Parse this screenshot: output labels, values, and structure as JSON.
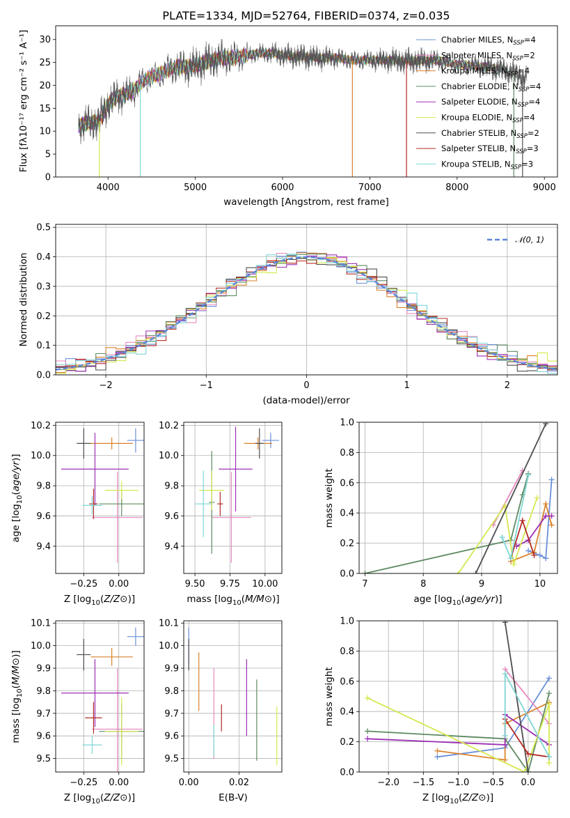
{
  "figure_title": "PLATE=1334, MJD=52764, FIBERID=0374, z=0.035",
  "colors": [
    "#6a8fd9",
    "#e58ac0",
    "#d9822b",
    "#5d8a62",
    "#9b2fb4",
    "#d6e84f",
    "#4d4d4d",
    "#b22a22",
    "#7fd6d6"
  ],
  "sub_labels": {
    "over": "over",
    "sub": "sub"
  },
  "chart_data": [
    {
      "type": "line",
      "title": "PLATE=1334, MJD=52764, FIBERID=0374, z=0.035",
      "xlabel": "wavelength [Angstrom, rest frame]",
      "ylabel": "Flux [fλ10⁻¹⁷ erg cm⁻² s⁻¹ A⁻¹]",
      "xlim": [
        3400,
        9150
      ],
      "ylim": [
        0,
        33
      ],
      "xticks": [
        4000,
        5000,
        6000,
        7000,
        8000,
        9000
      ],
      "yticks": [
        0,
        5,
        10,
        15,
        20,
        25,
        30
      ],
      "grid": false,
      "legend": "top-right",
      "series_names": [
        "Chabrier MILES, N_SSP=4",
        "Salpeter MILES, N_SSP=2",
        "Kroupa MILES, N_SSP=4",
        "Chabrier ELODIE, N_SSP=4",
        "Salpeter ELODIE, N_SSP=4",
        "Kroupa ELODIE, N_SSP=4",
        "Chabrier STELIB, N_SSP=2",
        "Salpeter STELIB, N_SSP=3",
        "Kroupa STELIB, N_SSP=3"
      ],
      "legend_parts": [
        [
          "Chabrier MILES, N",
          "SSP",
          "=4"
        ],
        [
          "Salpeter MILES, N",
          "SSP",
          "=2"
        ],
        [
          "Kroupa MILES, N",
          "SSP",
          "=4"
        ],
        [
          "Chabrier ELODIE, N",
          "SSP",
          "=4"
        ],
        [
          "Salpeter ELODIE, N",
          "SSP",
          "=4"
        ],
        [
          "Kroupa ELODIE, N",
          "SSP",
          "=4"
        ],
        [
          "Chabrier STELIB, N",
          "SSP",
          "=2"
        ],
        [
          "Salpeter STELIB, N",
          "SSP",
          "=3"
        ],
        [
          "Kroupa STELIB, N",
          "SSP",
          "=3"
        ]
      ],
      "continuum": {
        "x": [
          3650,
          3700,
          3800,
          3900,
          4000,
          4100,
          4200,
          4300,
          4400,
          4500,
          4600,
          4700,
          4800,
          4900,
          5000,
          5100,
          5200,
          5300,
          5400,
          5500,
          5600,
          5700,
          5800,
          5900,
          6000,
          6200,
          6400,
          6600,
          6800,
          7000,
          7200,
          7400,
          7600,
          7800,
          8000,
          8200,
          8400,
          8600,
          8800
        ],
        "y": [
          11,
          11.5,
          11.8,
          12.2,
          16,
          17.5,
          18,
          19,
          21,
          21.8,
          22.5,
          23.5,
          24,
          24,
          24.2,
          25,
          25.5,
          26,
          26,
          26.2,
          26.5,
          27,
          27,
          27,
          26.5,
          26.3,
          26,
          26,
          25.5,
          25.5,
          25.5,
          25.3,
          25.4,
          25.4,
          24.5,
          24.3,
          23.8,
          23,
          21.5
        ]
      },
      "dropouts": [
        {
          "series": 8,
          "x": 4370
        },
        {
          "series": 5,
          "x": 3900
        },
        {
          "series": 2,
          "x": 6800
        },
        {
          "series": 7,
          "x": 7420
        },
        {
          "series": 3,
          "x": 8650
        },
        {
          "series": 6,
          "x": 8750
        }
      ]
    },
    {
      "type": "bar",
      "subtype": "step-histogram",
      "xlabel": "(data-model)/error",
      "ylabel": "Normed distribution",
      "xlim": [
        -2.5,
        2.5
      ],
      "ylim": [
        0,
        0.51
      ],
      "xticks": [
        -2,
        -1,
        0,
        1,
        2
      ],
      "yticks": [
        0,
        0.1,
        0.2,
        0.3,
        0.4,
        0.5
      ],
      "bin_width": 0.1,
      "grid": true,
      "legend": "top-right",
      "reference_curve": {
        "name": "𝒩(0, 1)",
        "mean": 0,
        "sigma": 1
      },
      "jitter": [
        0.012,
        -0.01,
        0.015,
        -0.02,
        0.008,
        0.025,
        -0.015,
        0.03,
        -0.005,
        0.01,
        -0.025,
        0.02,
        0.005,
        -0.012,
        0.018,
        -0.008,
        0.022,
        -0.018,
        0.006,
        0.045,
        -0.03,
        0.012,
        -0.02,
        0.035,
        0.01,
        -0.015,
        0.028,
        -0.01,
        0.015,
        -0.022,
        0.02,
        0.008,
        -0.012,
        0.015,
        -0.02,
        0.03,
        -0.008,
        0.012
      ]
    },
    {
      "type": "scatter",
      "subtype": "error-cross",
      "xlabel": "Z [log10(Z/Z⊙)]",
      "ylabel": "age  [log10(age/yr)]",
      "xlim": [
        -0.45,
        0.18
      ],
      "ylim": [
        9.22,
        10.22
      ],
      "xticks": [
        -0.25,
        0.0
      ],
      "yticks": [
        9.4,
        9.6,
        9.8,
        10.0,
        10.2
      ],
      "grid": true,
      "points": [
        {
          "series": 0,
          "x": 0.12,
          "y": 10.1,
          "xe": 0.06,
          "ye": 0.08
        },
        {
          "series": 1,
          "x": -0.01,
          "y": 9.59,
          "xe": 0.18,
          "ye": 0.3
        },
        {
          "series": 2,
          "x": -0.05,
          "y": 10.08,
          "xe": 0.15,
          "ye": 0.04
        },
        {
          "series": 3,
          "x": 0.02,
          "y": 9.68,
          "xe": 0.16,
          "ye": 0.08
        },
        {
          "series": 4,
          "x": -0.17,
          "y": 9.91,
          "xe": 0.24,
          "ye": 0.24
        },
        {
          "series": 5,
          "x": 0.02,
          "y": 9.77,
          "xe": 0.12,
          "ye": 0.06
        },
        {
          "series": 6,
          "x": -0.25,
          "y": 10.08,
          "xe": 0.05,
          "ye": 0.1
        },
        {
          "series": 7,
          "x": -0.18,
          "y": 9.68,
          "xe": 0.03,
          "ye": 0.1
        },
        {
          "series": 8,
          "x": -0.19,
          "y": 9.67,
          "xe": 0.07,
          "ye": 0.06
        }
      ]
    },
    {
      "type": "scatter",
      "subtype": "error-cross",
      "xlabel": "mass [log10(M/M⊙)]",
      "ylabel": "",
      "xlim": [
        9.42,
        10.12
      ],
      "ylim": [
        9.22,
        10.22
      ],
      "xticks": [
        9.5,
        9.75,
        10.0
      ],
      "yticks": [
        9.4,
        9.6,
        9.8,
        10.0,
        10.2
      ],
      "grid": true,
      "points": [
        {
          "series": 0,
          "x": 10.04,
          "y": 10.1,
          "xe": 0.06,
          "ye": 0.05
        },
        {
          "series": 1,
          "x": 9.76,
          "y": 9.59,
          "xe": 0.14,
          "ye": 0.3
        },
        {
          "series": 2,
          "x": 9.95,
          "y": 10.08,
          "xe": 0.1,
          "ye": 0.04
        },
        {
          "series": 3,
          "x": 9.62,
          "y": 9.69,
          "xe": 0.02,
          "ye": 0.34
        },
        {
          "series": 4,
          "x": 9.79,
          "y": 9.91,
          "xe": 0.12,
          "ye": 0.28
        },
        {
          "series": 5,
          "x": 9.62,
          "y": 9.77,
          "xe": 0.09,
          "ye": 0.13
        },
        {
          "series": 6,
          "x": 9.96,
          "y": 10.08,
          "xe": 0.03,
          "ye": 0.1
        },
        {
          "series": 7,
          "x": 9.68,
          "y": 9.68,
          "xe": 0.02,
          "ye": 0.08
        },
        {
          "series": 8,
          "x": 9.56,
          "y": 9.68,
          "xe": 0.06,
          "ye": 0.22
        }
      ]
    },
    {
      "type": "line",
      "subtype": "weights-vs-age",
      "xlabel": "age  [log10(age/yr)]",
      "ylabel": "mass weight",
      "xlim": [
        6.9,
        10.3
      ],
      "ylim": [
        0,
        1.0
      ],
      "xticks": [
        7,
        8,
        9,
        10
      ],
      "yticks": [
        0,
        0.2,
        0.4,
        0.6,
        0.8,
        1.0
      ],
      "grid": true,
      "series": [
        {
          "series": 0,
          "x": [
            9.8,
            10.0,
            10.1,
            10.2
          ],
          "y": [
            0.15,
            0.12,
            0.1,
            0.62
          ]
        },
        {
          "series": 1,
          "x": 9.2,
          "y": 0.32,
          "x2": 9.7,
          "y2": 0.68
        },
        {
          "series": 2,
          "x": [
            9.5,
            9.9,
            10.1,
            10.2
          ],
          "y": [
            0.08,
            0.14,
            0.46,
            0.32
          ]
        },
        {
          "series": 3,
          "x": [
            7.0,
            9.5,
            9.7,
            9.8
          ],
          "y": [
            0.0,
            0.22,
            0.52,
            0.66
          ]
        },
        {
          "series": 4,
          "x": [
            9.6,
            9.8,
            10.1,
            10.2
          ],
          "y": [
            0.18,
            0.22,
            0.38,
            0.38
          ]
        },
        {
          "series": 5,
          "x": [
            8.6,
            9.4,
            9.55,
            9.95
          ],
          "y": [
            0.0,
            0.45,
            0.06,
            0.5
          ]
        },
        {
          "series": 6,
          "x": 8.9,
          "y": 0.0,
          "x2": 10.1,
          "y2": 0.99
        },
        {
          "series": 7,
          "x": [
            9.5,
            9.7,
            9.9
          ],
          "y": [
            0.1,
            0.35,
            0.12
          ]
        },
        {
          "series": 8,
          "x": [
            9.35,
            9.5,
            9.8
          ],
          "y": [
            0.24,
            0.1,
            0.65
          ]
        }
      ]
    },
    {
      "type": "scatter",
      "subtype": "error-cross",
      "xlabel": "Z [log10(Z/Z⊙)]",
      "ylabel": "mass [log10(M/M⊙)]",
      "xlim": [
        -0.45,
        0.18
      ],
      "ylim": [
        9.44,
        10.11
      ],
      "xticks": [
        -0.25,
        0.0
      ],
      "yticks": [
        9.5,
        9.6,
        9.7,
        9.8,
        9.9,
        10.0,
        10.1
      ],
      "grid": true,
      "points": [
        {
          "series": 0,
          "x": 0.12,
          "y": 10.04,
          "xe": 0.06,
          "ye": 0.04
        },
        {
          "series": 1,
          "x": -0.01,
          "y": 9.63,
          "xe": 0.18,
          "ye": 0.27
        },
        {
          "series": 2,
          "x": -0.05,
          "y": 9.95,
          "xe": 0.15,
          "ye": 0.04
        },
        {
          "series": 3,
          "x": 0.02,
          "y": 9.62,
          "xe": 0.16,
          "ye": 0.12
        },
        {
          "series": 4,
          "x": -0.17,
          "y": 9.79,
          "xe": 0.24,
          "ye": 0.15
        },
        {
          "series": 5,
          "x": 0.02,
          "y": 9.62,
          "xe": 0.12,
          "ye": 0.15
        },
        {
          "series": 6,
          "x": -0.25,
          "y": 9.96,
          "xe": 0.05,
          "ye": 0.07
        },
        {
          "series": 7,
          "x": -0.18,
          "y": 9.68,
          "xe": 0.06,
          "ye": 0.07
        },
        {
          "series": 8,
          "x": -0.19,
          "y": 9.56,
          "xe": 0.07,
          "ye": 0.04
        }
      ]
    },
    {
      "type": "scatter",
      "subtype": "error-bar",
      "xlabel": "E(B-V)",
      "ylabel": "",
      "xlim": [
        -0.002,
        0.037
      ],
      "ylim": [
        9.44,
        10.11
      ],
      "xticks": [
        0.0,
        0.02
      ],
      "yticks": [
        9.5,
        9.6,
        9.7,
        9.8,
        9.9,
        10.0,
        10.1
      ],
      "grid": true,
      "points": [
        {
          "series": 0,
          "x": 0.0,
          "y": 10.0,
          "ye": 0.08
        },
        {
          "series": 1,
          "x": 0.01,
          "y": 9.7,
          "ye": 0.2
        },
        {
          "series": 2,
          "x": 0.004,
          "y": 9.84,
          "ye": 0.13
        },
        {
          "series": 3,
          "x": 0.027,
          "y": 9.67,
          "ye": 0.18
        },
        {
          "series": 4,
          "x": 0.023,
          "y": 9.77,
          "ye": 0.17
        },
        {
          "series": 5,
          "x": 0.035,
          "y": 9.6,
          "ye": 0.13
        },
        {
          "series": 6,
          "x": 0.0,
          "y": 9.96,
          "ye": 0.07
        },
        {
          "series": 7,
          "x": 0.013,
          "y": 9.68,
          "ye": 0.06
        },
        {
          "series": 8,
          "x": 0.01,
          "y": 9.58,
          "ye": 0.07
        }
      ]
    },
    {
      "type": "line",
      "subtype": "weights-vs-Z",
      "xlabel": "Z [log10(Z/Z⊙)]",
      "ylabel": "mass weight",
      "xlim": [
        -2.42,
        0.42
      ],
      "ylim": [
        0,
        1.0
      ],
      "xticks": [
        -2.0,
        -1.5,
        -1.0,
        -0.5,
        0.0
      ],
      "yticks": [
        0,
        0.2,
        0.4,
        0.6,
        0.8,
        1.0
      ],
      "grid": true,
      "series": [
        {
          "series": 0,
          "x": [
            -1.3,
            -0.33,
            0.3
          ],
          "y": [
            0.1,
            0.16,
            0.62
          ]
        },
        {
          "series": 1,
          "x": [
            -0.33,
            0.3
          ],
          "y": [
            0.68,
            0.32
          ]
        },
        {
          "series": 2,
          "x": [
            -1.3,
            -0.33,
            -0.33,
            0.3
          ],
          "y": [
            0.14,
            0.08,
            0.32,
            0.46
          ]
        },
        {
          "series": 3,
          "x": [
            -2.3,
            -0.33,
            0.0,
            0.3
          ],
          "y": [
            0.27,
            0.22,
            0.0,
            0.52
          ]
        },
        {
          "series": 4,
          "x": [
            -2.3,
            -0.33,
            -0.33,
            0.3
          ],
          "y": [
            0.22,
            0.18,
            0.38,
            0.18
          ]
        },
        {
          "series": 5,
          "x": [
            -2.3,
            -0.05,
            0.3,
            0.3
          ],
          "y": [
            0.49,
            0.0,
            0.45,
            0.06
          ]
        },
        {
          "series": 6,
          "x": [
            -0.33,
            0.0
          ],
          "y": [
            0.99,
            0.0
          ]
        },
        {
          "series": 7,
          "x": [
            -0.33,
            0.0,
            0.3
          ],
          "y": [
            0.35,
            0.12,
            0.1
          ]
        },
        {
          "series": 8,
          "x": [
            -0.33,
            -0.33,
            0.3
          ],
          "y": [
            0.24,
            0.65,
            0.1
          ]
        }
      ]
    }
  ]
}
